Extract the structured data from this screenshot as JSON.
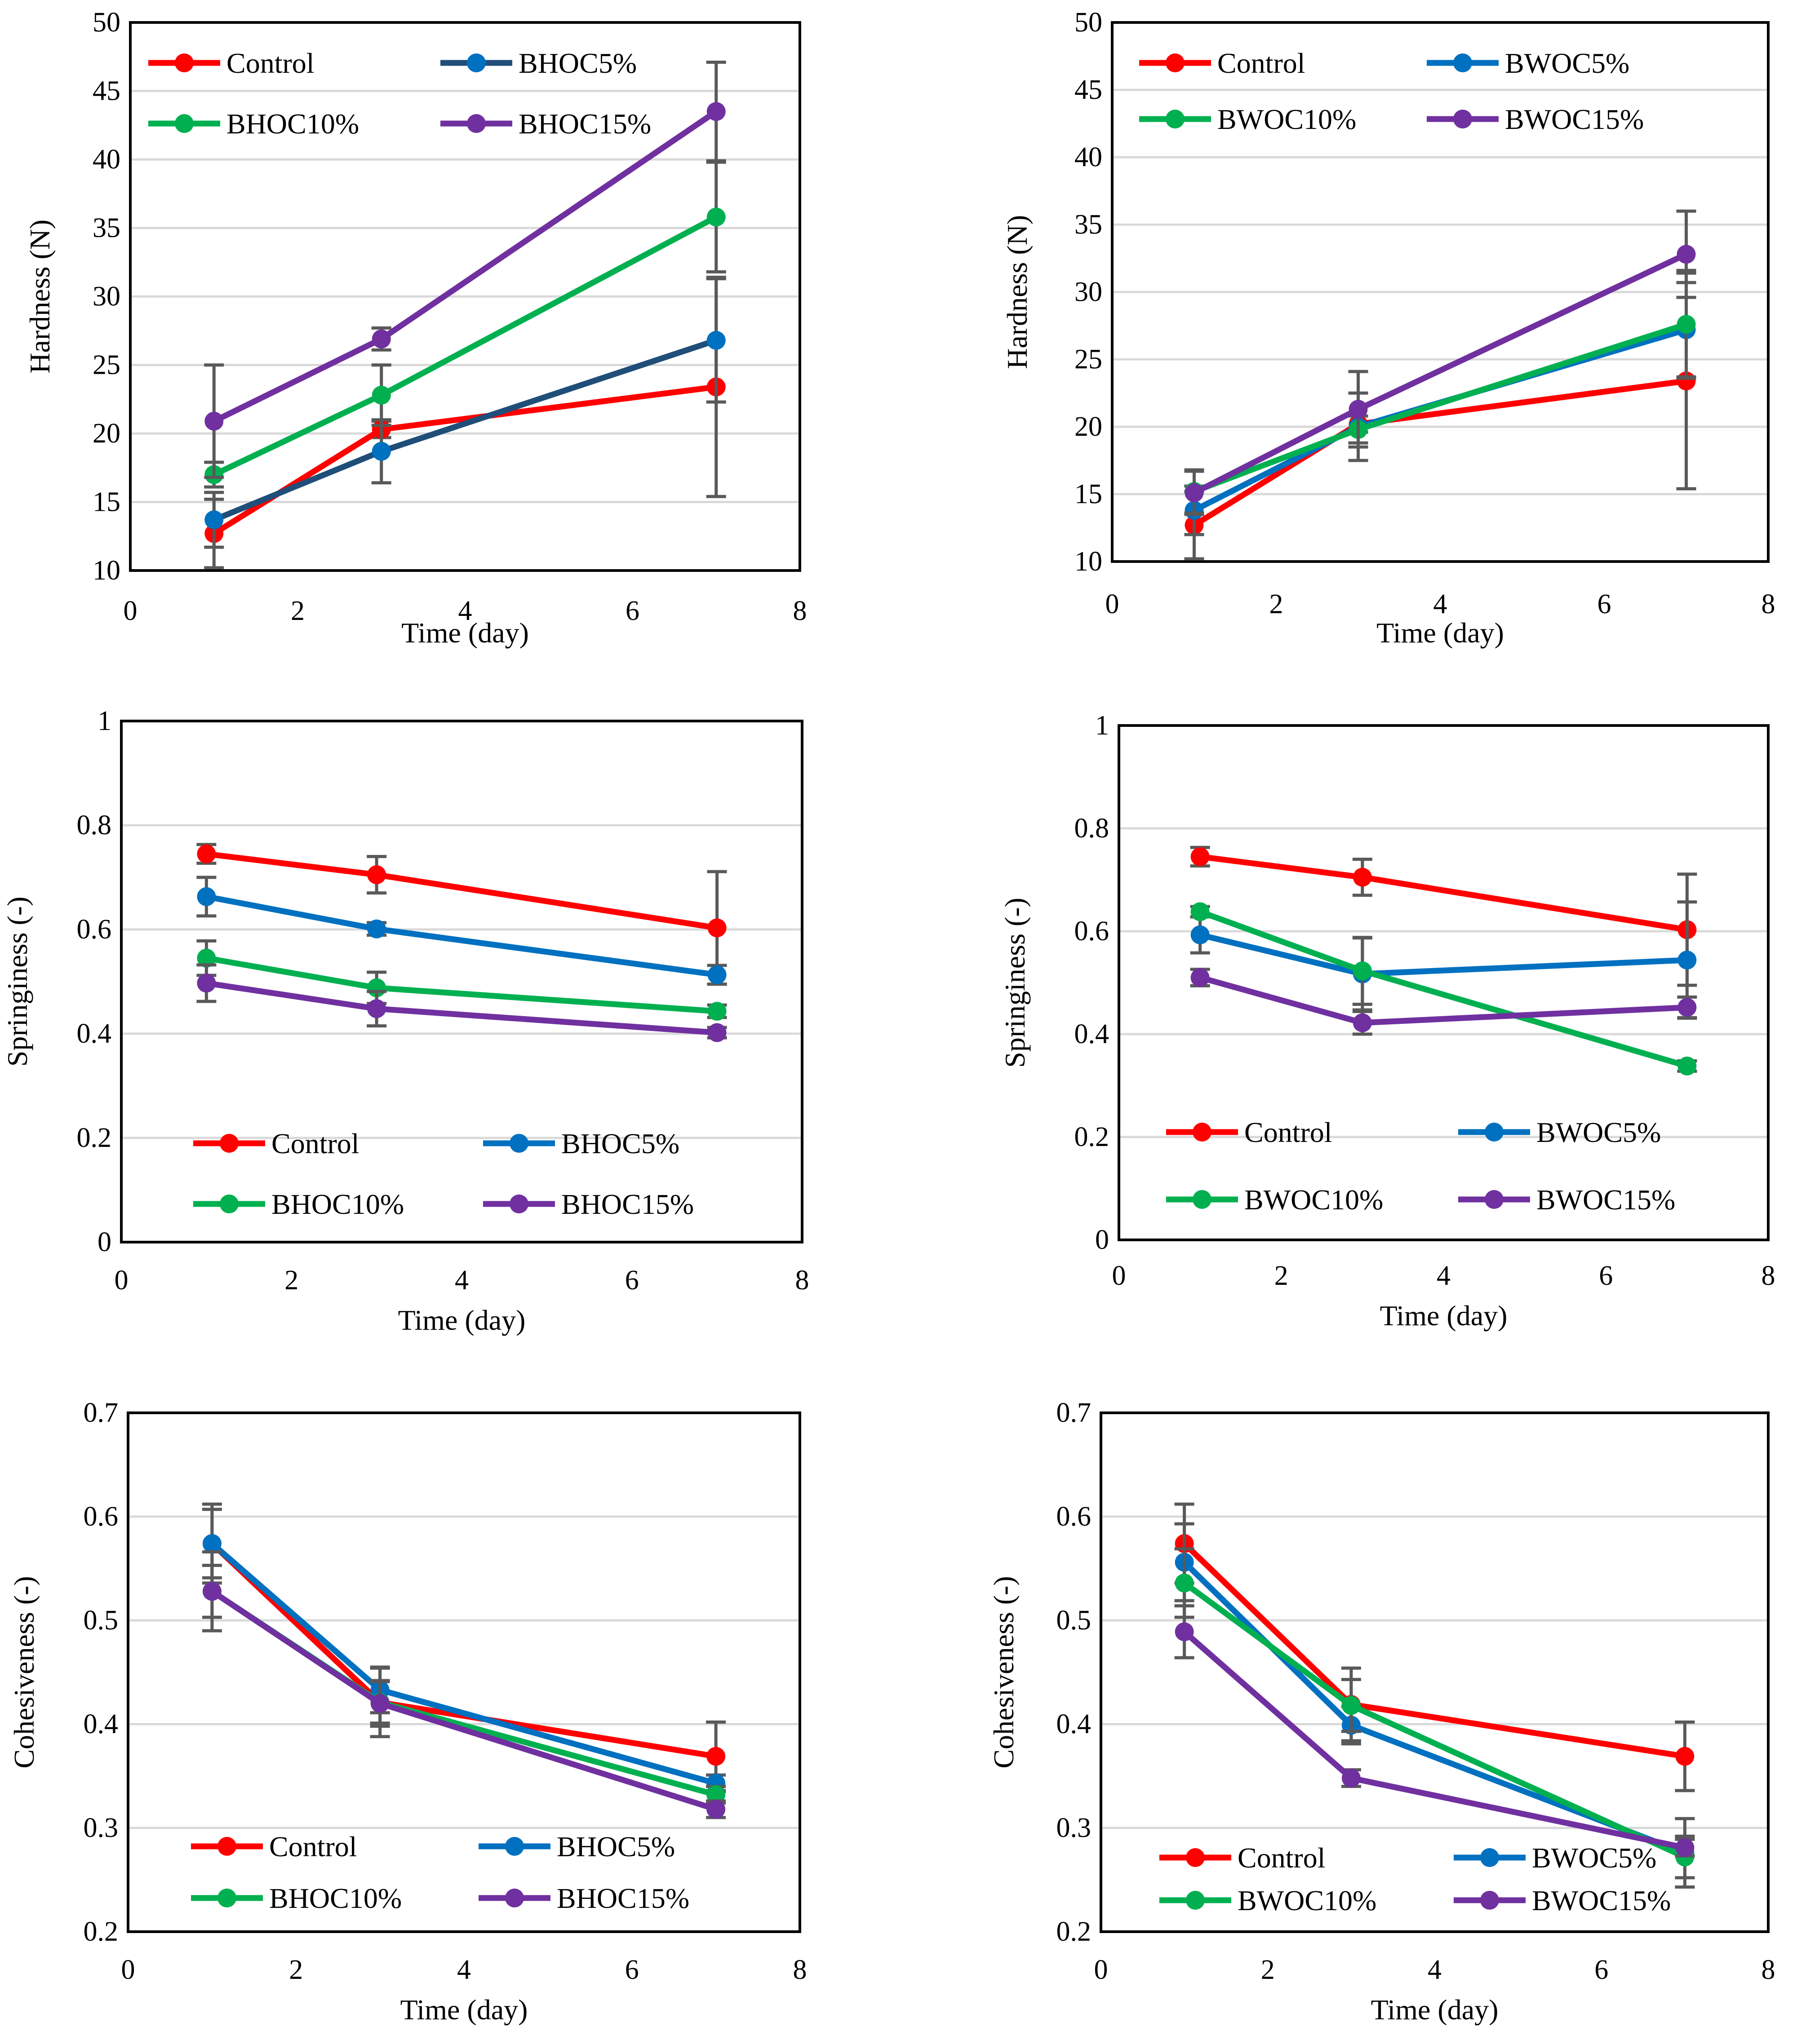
{
  "chart_data": [
    {
      "type": "line",
      "title": "",
      "xlabel": "Time (day)",
      "ylabel": "Hardness (N)",
      "xlim": [
        0,
        8
      ],
      "ylim": [
        10,
        50
      ],
      "xticks": [
        0,
        2,
        4,
        6,
        8
      ],
      "yticks": [
        10,
        15,
        20,
        25,
        30,
        35,
        40,
        45,
        50
      ],
      "grid": true,
      "legend_position": "top-left",
      "x": [
        1,
        3,
        7
      ],
      "series": [
        {
          "name": "Control",
          "color": "#ff0000",
          "values": [
            12.7,
            20.3,
            23.4
          ],
          "errors": [
            2.5,
            0.6,
            8.0
          ]
        },
        {
          "name": "BHOC5%",
          "color": "#0070c0",
          "line_color": "#1f4e79",
          "values": [
            13.7,
            18.7,
            26.8
          ],
          "errors": [
            2.0,
            2.3,
            4.5
          ]
        },
        {
          "name": "BHOC10%",
          "color": "#00b050",
          "values": [
            17.0,
            22.8,
            35.8
          ],
          "errors": [
            0.9,
            2.2,
            4.0
          ]
        },
        {
          "name": "BHOC15%",
          "color": "#7030a0",
          "values": [
            20.9,
            26.9,
            43.5
          ],
          "errors": [
            4.1,
            0.8,
            3.6
          ]
        }
      ]
    },
    {
      "type": "line",
      "title": "",
      "xlabel": "Time (day)",
      "ylabel": "Hardness (N)",
      "xlim": [
        0,
        8
      ],
      "ylim": [
        10,
        50
      ],
      "xticks": [
        0,
        2,
        4,
        6,
        8
      ],
      "yticks": [
        10,
        15,
        20,
        25,
        30,
        35,
        40,
        45,
        50
      ],
      "grid": true,
      "legend_position": "top-left",
      "x": [
        1,
        3,
        7
      ],
      "series": [
        {
          "name": "Control",
          "color": "#ff0000",
          "values": [
            12.7,
            20.2,
            23.4
          ],
          "errors": [
            2.5,
            0.6,
            8.0
          ]
        },
        {
          "name": "BWOC5%",
          "color": "#0070c0",
          "values": [
            13.8,
            20.0,
            27.2
          ],
          "errors": [
            1.8,
            2.5,
            3.5
          ]
        },
        {
          "name": "BWOC10%",
          "color": "#00b050",
          "values": [
            15.2,
            19.8,
            27.6
          ],
          "errors": [
            1.6,
            1.0,
            4.0
          ]
        },
        {
          "name": "BWOC15%",
          "color": "#7030a0",
          "values": [
            15.1,
            21.3,
            32.8
          ],
          "errors": [
            1.6,
            2.8,
            3.2
          ]
        }
      ]
    },
    {
      "type": "line",
      "title": "",
      "xlabel": "Time (day)",
      "ylabel": "Springiness (-)",
      "xlim": [
        0,
        8
      ],
      "ylim": [
        0,
        1
      ],
      "xticks": [
        0,
        2,
        4,
        6,
        8
      ],
      "yticks": [
        0,
        0.2,
        0.4,
        0.6,
        0.8,
        1
      ],
      "grid": true,
      "legend_position": "bottom",
      "x": [
        1,
        3,
        7
      ],
      "series": [
        {
          "name": "Control",
          "color": "#ff0000",
          "values": [
            0.745,
            0.705,
            0.603
          ],
          "errors": [
            0.018,
            0.035,
            0.108
          ]
        },
        {
          "name": "BHOC5%",
          "color": "#0070c0",
          "values": [
            0.663,
            0.601,
            0.513
          ],
          "errors": [
            0.037,
            0.012,
            0.018
          ]
        },
        {
          "name": "BHOC10%",
          "color": "#00b050",
          "values": [
            0.545,
            0.488,
            0.443
          ],
          "errors": [
            0.033,
            0.03,
            0.012
          ]
        },
        {
          "name": "BHOC15%",
          "color": "#7030a0",
          "values": [
            0.497,
            0.448,
            0.402
          ],
          "errors": [
            0.035,
            0.033,
            0.01
          ]
        }
      ]
    },
    {
      "type": "line",
      "title": "",
      "xlabel": "Time (day)",
      "ylabel": "Springiness (-)",
      "xlim": [
        0,
        8
      ],
      "ylim": [
        0,
        1
      ],
      "xticks": [
        0,
        2,
        4,
        6,
        8
      ],
      "yticks": [
        0,
        0.2,
        0.4,
        0.6,
        0.8,
        1
      ],
      "grid": true,
      "legend_position": "bottom",
      "x": [
        1,
        3,
        7
      ],
      "series": [
        {
          "name": "Control",
          "color": "#ff0000",
          "values": [
            0.745,
            0.705,
            0.603
          ],
          "errors": [
            0.018,
            0.035,
            0.108
          ]
        },
        {
          "name": "BWOC5%",
          "color": "#0070c0",
          "values": [
            0.593,
            0.517,
            0.544
          ],
          "errors": [
            0.035,
            0.07,
            0.113
          ]
        },
        {
          "name": "BWOC10%",
          "color": "#00b050",
          "values": [
            0.638,
            0.523,
            0.338
          ],
          "errors": [
            0.01,
            0.065,
            0.01
          ]
        },
        {
          "name": "BWOC15%",
          "color": "#7030a0",
          "values": [
            0.51,
            0.422,
            0.452
          ],
          "errors": [
            0.016,
            0.022,
            0.02
          ]
        }
      ]
    },
    {
      "type": "line",
      "title": "",
      "xlabel": "Time (day)",
      "ylabel": "Cohesiveness (-)",
      "xlim": [
        0,
        8
      ],
      "ylim": [
        0.2,
        0.7
      ],
      "xticks": [
        0,
        2,
        4,
        6,
        8
      ],
      "yticks": [
        0.2,
        0.3,
        0.4,
        0.5,
        0.6,
        0.7
      ],
      "grid": true,
      "legend_position": "bottom",
      "x": [
        1,
        3,
        7
      ],
      "series": [
        {
          "name": "Control",
          "color": "#ff0000",
          "values": [
            0.574,
            0.421,
            0.369
          ],
          "errors": [
            0.038,
            0.033,
            0.033
          ]
        },
        {
          "name": "BHOC5%",
          "color": "#0070c0",
          "values": [
            0.574,
            0.433,
            0.343
          ],
          "errors": [
            0.033,
            0.022,
            0.008
          ]
        },
        {
          "name": "BHOC10%",
          "color": "#00b050",
          "values": [
            0.528,
            0.421,
            0.332
          ],
          "errors": [
            0.025,
            0.02,
            0.008
          ]
        },
        {
          "name": "BHOC15%",
          "color": "#7030a0",
          "values": [
            0.528,
            0.42,
            0.318
          ],
          "errors": [
            0.038,
            0.022,
            0.008
          ]
        }
      ]
    },
    {
      "type": "line",
      "title": "",
      "xlabel": "Time (day)",
      "ylabel": "Cohesiveness (-)",
      "xlim": [
        0,
        8
      ],
      "ylim": [
        0.2,
        0.7
      ],
      "xticks": [
        0,
        2,
        4,
        6,
        8
      ],
      "yticks": [
        0.2,
        0.3,
        0.4,
        0.5,
        0.6,
        0.7
      ],
      "grid": true,
      "legend_position": "bottom",
      "x": [
        1,
        3,
        7
      ],
      "series": [
        {
          "name": "Control",
          "color": "#ff0000",
          "values": [
            0.574,
            0.419,
            0.369
          ],
          "errors": [
            0.038,
            0.035,
            0.033
          ]
        },
        {
          "name": "BWOC5%",
          "color": "#0070c0",
          "values": [
            0.556,
            0.399,
            0.276
          ],
          "errors": [
            0.037,
            0.018,
            0.033
          ]
        },
        {
          "name": "BWOC10%",
          "color": "#00b050",
          "values": [
            0.536,
            0.418,
            0.272
          ],
          "errors": [
            0.033,
            0.025,
            0.02
          ]
        },
        {
          "name": "BWOC15%",
          "color": "#7030a0",
          "values": [
            0.489,
            0.348,
            0.281
          ],
          "errors": [
            0.025,
            0.008,
            0.008
          ]
        }
      ]
    }
  ]
}
